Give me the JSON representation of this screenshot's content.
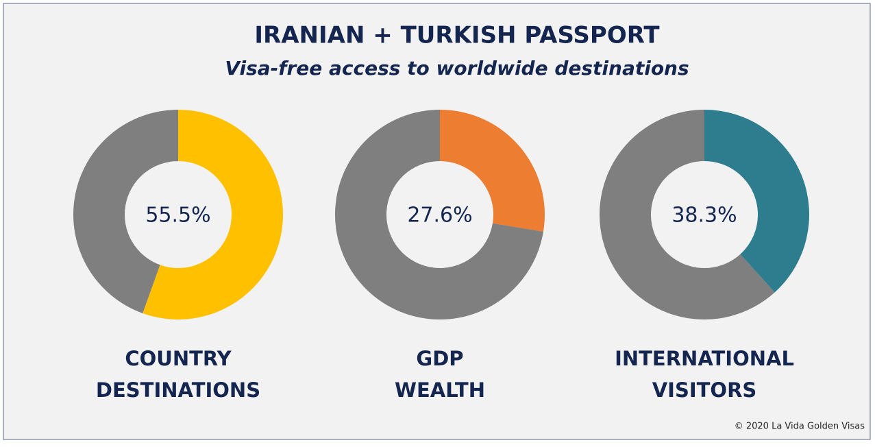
{
  "title": "IRANIAN + TURKISH PASSPORT",
  "subtitle": "Visa-free access to worldwide destinations",
  "credit": "© 2020 La Vida Golden Visas",
  "chart_data": [
    {
      "type": "donut",
      "label": [
        "COUNTRY",
        "DESTINATIONS"
      ],
      "values": [
        55.5,
        44.5
      ],
      "value_labels": [
        "55.5%",
        null
      ],
      "colors": [
        "#ffc000",
        "#7f7f7f"
      ]
    },
    {
      "type": "donut",
      "label": [
        "GDP",
        "WEALTH"
      ],
      "values": [
        27.6,
        72.4
      ],
      "value_labels": [
        "27.6%",
        null
      ],
      "colors": [
        "#ed7d31",
        "#7f7f7f"
      ]
    },
    {
      "type": "donut",
      "label": [
        "INTERNATIONAL",
        "VISITORS"
      ],
      "values": [
        38.3,
        61.7
      ],
      "value_labels": [
        "38.3%",
        null
      ],
      "colors": [
        "#2e7d8f",
        "#7f7f7f"
      ]
    }
  ]
}
